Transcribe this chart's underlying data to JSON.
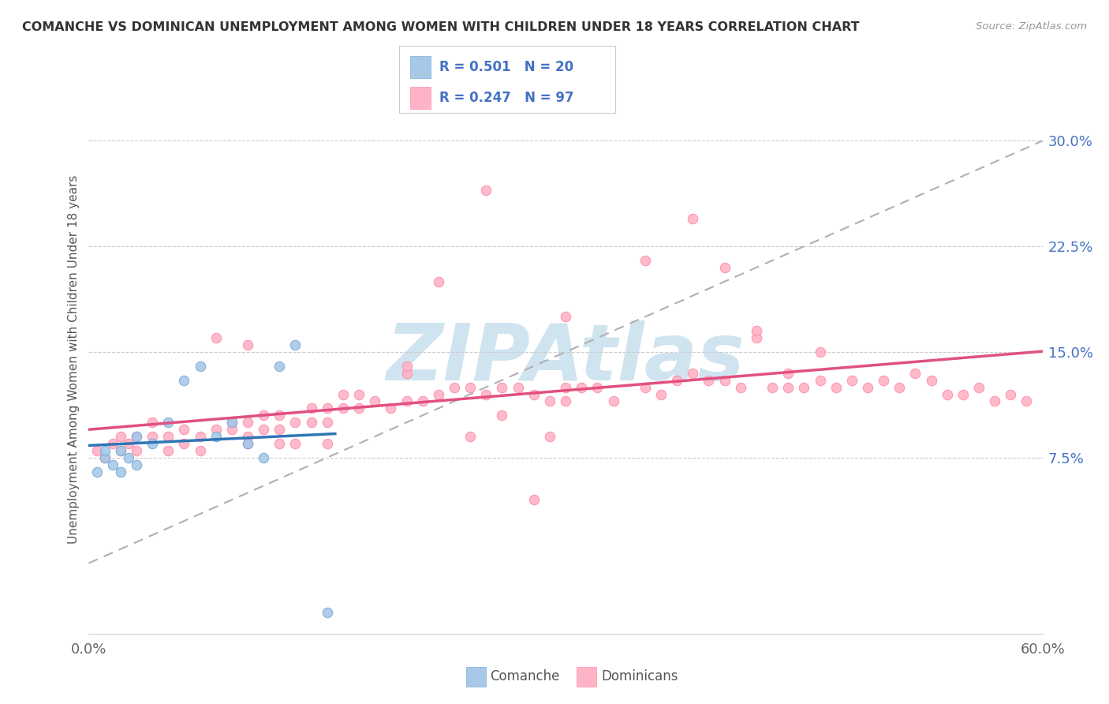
{
  "title": "COMANCHE VS DOMINICAN UNEMPLOYMENT AMONG WOMEN WITH CHILDREN UNDER 18 YEARS CORRELATION CHART",
  "source": "Source: ZipAtlas.com",
  "ylabel": "Unemployment Among Women with Children Under 18 years",
  "xlim": [
    0.0,
    0.6
  ],
  "ylim": [
    -0.05,
    0.34
  ],
  "yticks": [
    0.075,
    0.15,
    0.225,
    0.3
  ],
  "ytick_labels": [
    "7.5%",
    "15.0%",
    "22.5%",
    "30.0%"
  ],
  "xticks": [
    0.0,
    0.6
  ],
  "xtick_labels": [
    "0.0%",
    "60.0%"
  ],
  "comanche_color": "#a8c8e8",
  "dominican_color": "#ffb3c6",
  "comanche_edge_color": "#7aaed4",
  "dominican_edge_color": "#ff8fab",
  "comanche_line_color": "#2e75b6",
  "dominican_line_color": "#e05080",
  "legend_R_comanche": "R = 0.501",
  "legend_N_comanche": "N = 20",
  "legend_R_dominican": "R = 0.247",
  "legend_N_dominican": "N = 97",
  "comanche_x": [
    0.005,
    0.01,
    0.01,
    0.015,
    0.02,
    0.02,
    0.025,
    0.03,
    0.03,
    0.04,
    0.05,
    0.06,
    0.07,
    0.08,
    0.09,
    0.1,
    0.11,
    0.12,
    0.13,
    0.15
  ],
  "comanche_y": [
    0.065,
    0.075,
    0.08,
    0.07,
    0.08,
    0.065,
    0.075,
    0.07,
    0.09,
    0.085,
    0.1,
    0.13,
    0.14,
    0.09,
    0.1,
    0.085,
    0.075,
    0.14,
    0.155,
    -0.035
  ],
  "dominican_x": [
    0.005,
    0.01,
    0.015,
    0.02,
    0.02,
    0.025,
    0.03,
    0.03,
    0.04,
    0.04,
    0.05,
    0.05,
    0.06,
    0.06,
    0.07,
    0.07,
    0.08,
    0.08,
    0.09,
    0.09,
    0.1,
    0.1,
    0.1,
    0.11,
    0.11,
    0.12,
    0.12,
    0.12,
    0.13,
    0.13,
    0.14,
    0.14,
    0.15,
    0.15,
    0.15,
    0.16,
    0.16,
    0.17,
    0.17,
    0.18,
    0.19,
    0.2,
    0.2,
    0.21,
    0.22,
    0.22,
    0.23,
    0.24,
    0.24,
    0.25,
    0.26,
    0.26,
    0.27,
    0.28,
    0.29,
    0.29,
    0.3,
    0.3,
    0.31,
    0.32,
    0.33,
    0.35,
    0.36,
    0.37,
    0.38,
    0.39,
    0.4,
    0.4,
    0.41,
    0.42,
    0.43,
    0.44,
    0.44,
    0.45,
    0.46,
    0.47,
    0.48,
    0.49,
    0.5,
    0.51,
    0.53,
    0.54,
    0.55,
    0.56,
    0.57,
    0.58,
    0.59,
    0.25,
    0.3,
    0.35,
    0.38,
    0.42,
    0.46,
    0.52,
    0.1,
    0.2,
    0.28
  ],
  "dominican_y": [
    0.08,
    0.075,
    0.085,
    0.08,
    0.09,
    0.085,
    0.09,
    0.08,
    0.09,
    0.1,
    0.08,
    0.09,
    0.095,
    0.085,
    0.09,
    0.08,
    0.095,
    0.16,
    0.095,
    0.1,
    0.09,
    0.1,
    0.085,
    0.095,
    0.105,
    0.095,
    0.105,
    0.085,
    0.1,
    0.085,
    0.1,
    0.11,
    0.11,
    0.1,
    0.085,
    0.11,
    0.12,
    0.11,
    0.12,
    0.115,
    0.11,
    0.115,
    0.135,
    0.115,
    0.12,
    0.2,
    0.125,
    0.125,
    0.09,
    0.12,
    0.125,
    0.105,
    0.125,
    0.12,
    0.115,
    0.09,
    0.125,
    0.115,
    0.125,
    0.125,
    0.115,
    0.125,
    0.12,
    0.13,
    0.135,
    0.13,
    0.13,
    0.21,
    0.125,
    0.16,
    0.125,
    0.125,
    0.135,
    0.125,
    0.13,
    0.125,
    0.13,
    0.125,
    0.13,
    0.125,
    0.13,
    0.12,
    0.12,
    0.125,
    0.115,
    0.12,
    0.115,
    0.265,
    0.175,
    0.215,
    0.245,
    0.165,
    0.15,
    0.135,
    0.155,
    0.14,
    0.045
  ],
  "background_color": "#ffffff",
  "grid_color": "#cccccc",
  "watermark_text": "ZIPAtlas",
  "watermark_color": "#d0e4f0"
}
